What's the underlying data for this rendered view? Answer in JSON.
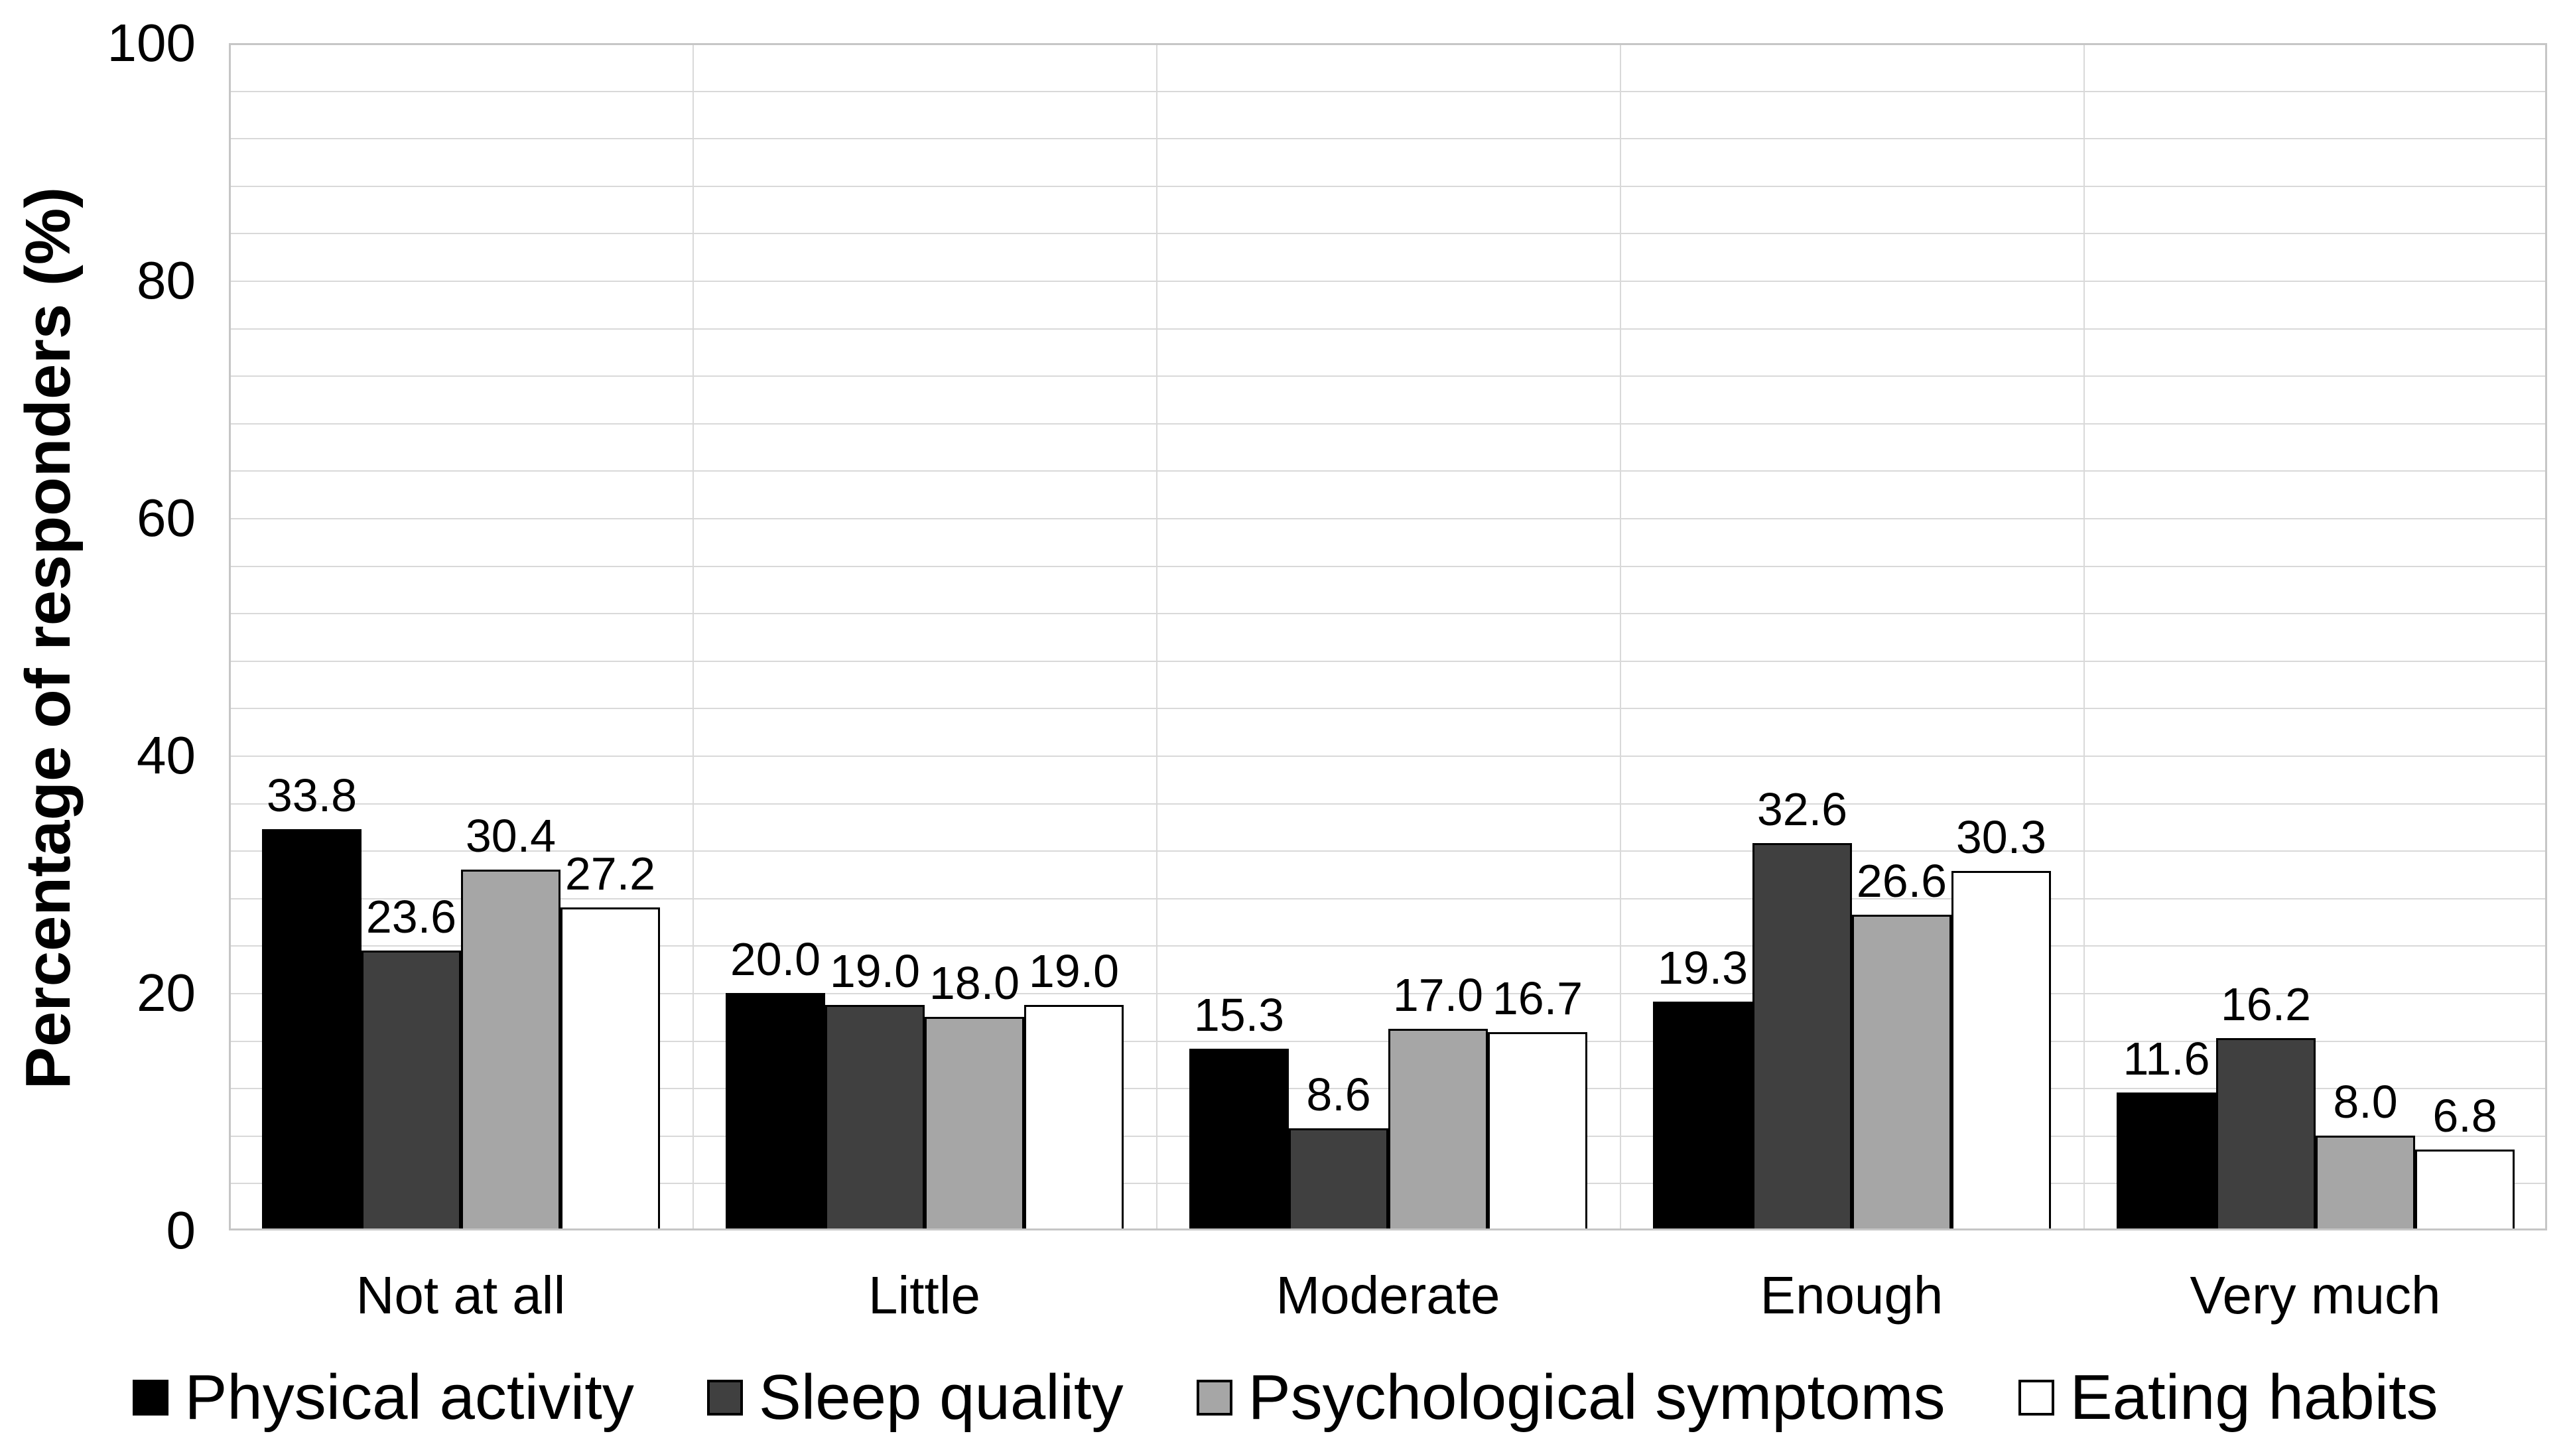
{
  "chart_data": {
    "type": "bar",
    "title": "",
    "ylabel": "Percentage of responders (%)",
    "xlabel": "",
    "ylim": [
      0,
      100
    ],
    "yticks": [
      0,
      20,
      40,
      60,
      80,
      100
    ],
    "minor_grid_step": 4,
    "grid": "light horizontal minor gridlines every 4 units; light vertical separators between category groups; light gray plot border",
    "legend_position": "bottom",
    "value_label_decimals": 1,
    "categories": [
      "Not at all",
      "Little",
      "Moderate",
      "Enough",
      "Very much"
    ],
    "series": [
      {
        "name": "Physical activity",
        "color": "#000000",
        "values": [
          33.8,
          20.0,
          15.3,
          19.3,
          11.6
        ]
      },
      {
        "name": "Sleep quality",
        "color": "#404040",
        "values": [
          23.6,
          19.0,
          8.6,
          32.6,
          16.2
        ]
      },
      {
        "name": "Psychological symptoms",
        "color": "#a6a6a6",
        "values": [
          30.4,
          18.0,
          17.0,
          26.6,
          8.0
        ]
      },
      {
        "name": "Eating habits",
        "color": "#ffffff",
        "values": [
          27.2,
          19.0,
          16.7,
          30.3,
          6.8
        ]
      }
    ],
    "bar_outline_color": "#000000"
  },
  "colors": {
    "background": "#ffffff",
    "gridline": "#d9d9d9",
    "plot_border": "#c6c6c6",
    "text": "#000000"
  }
}
